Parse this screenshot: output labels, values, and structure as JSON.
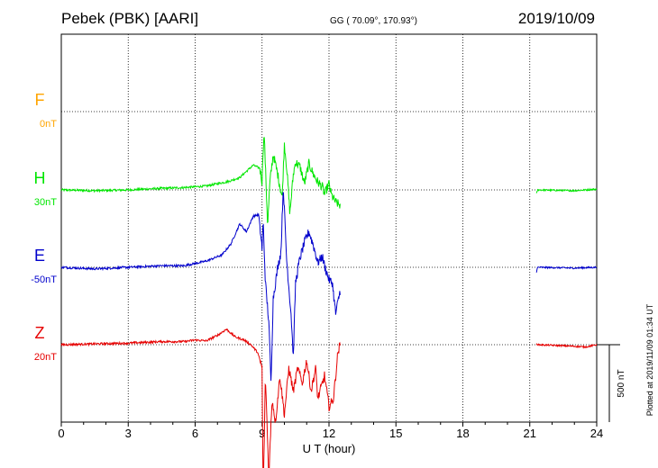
{
  "header": {
    "station": "Pebek (PBK)  [AARI]",
    "coords": "GG ( 70.09°, 170.93°)",
    "date": "2019/10/09"
  },
  "footer": {
    "plotted_note": "Plotted at 2019/11/09 01:34 UT"
  },
  "chart_data": {
    "type": "line",
    "title": "Pebek (PBK)  [AARI]",
    "xlabel": "U T (hour)",
    "ylabel": "",
    "xlim": [
      0,
      24
    ],
    "x_ticks": [
      "0",
      "3",
      "6",
      "9",
      "12",
      "15",
      "18",
      "21",
      "24"
    ],
    "grid": true,
    "scale_bar": {
      "label": "500 nT",
      "value_nT": 500
    },
    "series": [
      {
        "name": "F",
        "offset": "0nT",
        "color": "#ffa500",
        "points": []
      },
      {
        "name": "H",
        "offset": "30nT",
        "color": "#00e600",
        "points": [
          [
            0.0,
            0
          ],
          [
            1.5,
            -5
          ],
          [
            3.0,
            0
          ],
          [
            4.5,
            10
          ],
          [
            5.5,
            15
          ],
          [
            6.0,
            20
          ],
          [
            6.5,
            25
          ],
          [
            7.0,
            40
          ],
          [
            7.5,
            55
          ],
          [
            8.0,
            80
          ],
          [
            8.3,
            120
          ],
          [
            8.6,
            160
          ],
          [
            8.9,
            140
          ],
          [
            9.0,
            50
          ],
          [
            9.05,
            280
          ],
          [
            9.1,
            350
          ],
          [
            9.15,
            150
          ],
          [
            9.25,
            -230
          ],
          [
            9.35,
            50
          ],
          [
            9.5,
            230
          ],
          [
            9.7,
            100
          ],
          [
            9.9,
            -50
          ],
          [
            10.0,
            300
          ],
          [
            10.1,
            150
          ],
          [
            10.25,
            -150
          ],
          [
            10.4,
            100
          ],
          [
            10.5,
            180
          ],
          [
            10.7,
            150
          ],
          [
            10.9,
            40
          ],
          [
            11.1,
            170
          ],
          [
            11.3,
            100
          ],
          [
            11.5,
            50
          ],
          [
            11.7,
            20
          ],
          [
            11.8,
            -30
          ],
          [
            12.0,
            40
          ],
          [
            12.1,
            -30
          ],
          [
            12.3,
            -80
          ],
          [
            12.5,
            -100
          ]
        ]
      },
      {
        "name": "E",
        "offset": "-50nT",
        "color": "#0000cc",
        "points": [
          [
            0.0,
            0
          ],
          [
            1.5,
            -10
          ],
          [
            3.0,
            0
          ],
          [
            4.5,
            10
          ],
          [
            5.5,
            10
          ],
          [
            6.5,
            40
          ],
          [
            7.2,
            80
          ],
          [
            7.6,
            150
          ],
          [
            8.0,
            280
          ],
          [
            8.3,
            230
          ],
          [
            8.6,
            330
          ],
          [
            8.85,
            340
          ],
          [
            9.0,
            120
          ],
          [
            9.05,
            300
          ],
          [
            9.15,
            -100
          ],
          [
            9.3,
            -350
          ],
          [
            9.4,
            -750
          ],
          [
            9.5,
            -200
          ],
          [
            9.7,
            0
          ],
          [
            9.85,
            100
          ],
          [
            9.95,
            530
          ],
          [
            10.1,
            50
          ],
          [
            10.3,
            -300
          ],
          [
            10.4,
            -580
          ],
          [
            10.5,
            -100
          ],
          [
            10.7,
            60
          ],
          [
            10.9,
            160
          ],
          [
            11.1,
            230
          ],
          [
            11.3,
            140
          ],
          [
            11.5,
            30
          ],
          [
            11.7,
            70
          ],
          [
            11.8,
            10
          ],
          [
            12.0,
            -80
          ],
          [
            12.15,
            -100
          ],
          [
            12.3,
            -300
          ],
          [
            12.5,
            -150
          ]
        ]
      },
      {
        "name": "Z",
        "offset": "20nT",
        "color": "#e60000",
        "points": [
          [
            0.0,
            0
          ],
          [
            1.5,
            5
          ],
          [
            3.0,
            10
          ],
          [
            4.5,
            20
          ],
          [
            5.5,
            20
          ],
          [
            6.0,
            30
          ],
          [
            6.5,
            25
          ],
          [
            7.0,
            60
          ],
          [
            7.4,
            100
          ],
          [
            7.8,
            50
          ],
          [
            8.2,
            30
          ],
          [
            8.5,
            0
          ],
          [
            8.8,
            -50
          ],
          [
            9.0,
            -150
          ],
          [
            9.05,
            -1000
          ],
          [
            9.15,
            -200
          ],
          [
            9.3,
            -850
          ],
          [
            9.45,
            -350
          ],
          [
            9.6,
            -500
          ],
          [
            9.8,
            -200
          ],
          [
            10.0,
            -450
          ],
          [
            10.2,
            -150
          ],
          [
            10.4,
            -300
          ],
          [
            10.6,
            -150
          ],
          [
            10.8,
            -250
          ],
          [
            11.0,
            -100
          ],
          [
            11.2,
            -300
          ],
          [
            11.4,
            -150
          ],
          [
            11.5,
            -350
          ],
          [
            11.8,
            -200
          ],
          [
            12.0,
            -400
          ],
          [
            12.2,
            -350
          ],
          [
            12.4,
            -50
          ],
          [
            12.5,
            0
          ]
        ]
      }
    ]
  }
}
